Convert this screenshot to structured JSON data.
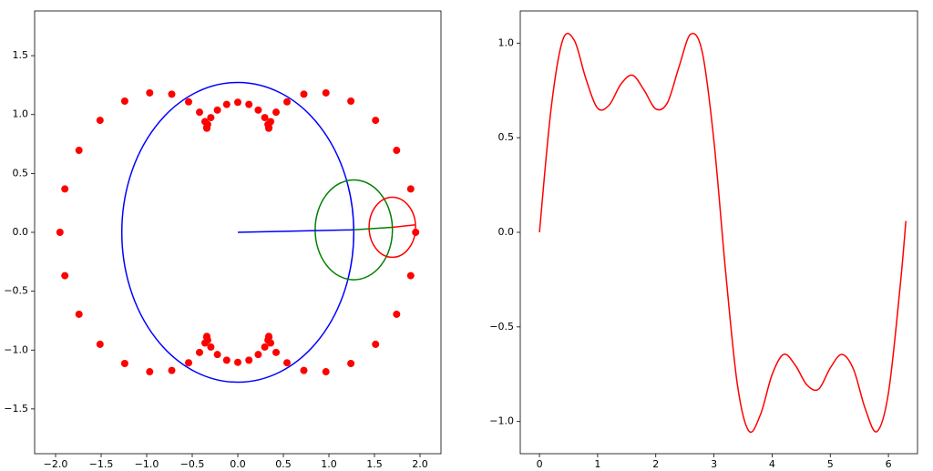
{
  "chart_data": [
    {
      "type": "scatter",
      "color": "#ff0000",
      "x": [
        1.952,
        1.898,
        1.743,
        1.512,
        1.241,
        0.967,
        0.725,
        0.54,
        0.42,
        0.36,
        0.341,
        0.34,
        0.331,
        0.296,
        0.224,
        0.122,
        0,
        -0.122,
        -0.224,
        -0.296,
        -0.331,
        -0.34,
        -0.341,
        -0.36,
        -0.42,
        -0.54,
        -0.725,
        -0.967,
        -1.241,
        -1.512,
        -1.743,
        -1.898,
        -1.952,
        -1.898,
        -1.743,
        -1.512,
        -1.241,
        -0.967,
        -0.725,
        -0.54,
        -0.42,
        -0.36,
        -0.341,
        -0.34,
        -0.331,
        -0.296,
        -0.224,
        -0.122,
        0,
        0.122,
        0.224,
        0.296,
        0.331,
        0.34,
        0.341,
        0.36,
        0.42,
        0.54,
        0.725,
        0.967,
        1.241,
        1.512,
        1.743,
        1.898
      ],
      "y": [
        0,
        0.368,
        0.696,
        0.951,
        1.114,
        1.184,
        1.173,
        1.108,
        1.02,
        0.94,
        0.891,
        0.884,
        0.916,
        0.974,
        1.038,
        1.086,
        1.104,
        1.086,
        1.038,
        0.974,
        0.916,
        0.884,
        0.891,
        0.94,
        1.02,
        1.108,
        1.173,
        1.184,
        1.114,
        0.951,
        0.696,
        0.368,
        0,
        -0.368,
        -0.696,
        -0.951,
        -1.114,
        -1.184,
        -1.173,
        -1.108,
        -1.02,
        -0.94,
        -0.891,
        -0.884,
        -0.916,
        -0.974,
        -1.038,
        -1.086,
        -1.104,
        -1.086,
        -1.038,
        -0.974,
        -0.916,
        -0.884,
        -0.891,
        -0.94,
        -1.02,
        -1.108,
        -1.173,
        -1.184,
        -1.114,
        -0.951,
        -0.696,
        -0.368
      ],
      "circles": [
        {
          "center": [
            0,
            0
          ],
          "radius": 1.273,
          "color": "#0000ff"
        },
        {
          "center": [
            1.273,
            0.021
          ],
          "radius": 0.424,
          "color": "#008000"
        },
        {
          "center": [
            1.696,
            0.043
          ],
          "radius": 0.255,
          "color": "#ff0000"
        }
      ],
      "lines": [
        {
          "from": [
            0,
            0
          ],
          "to": [
            1.273,
            0.021
          ],
          "color": "#0000ff"
        },
        {
          "from": [
            1.273,
            0.021
          ],
          "to": [
            1.696,
            0.043
          ],
          "color": "#008000"
        },
        {
          "from": [
            1.696,
            0.043
          ],
          "to": [
            1.951,
            0.064
          ],
          "color": "#ff0000"
        }
      ],
      "xlim": [
        -2.23,
        2.23
      ],
      "ylim": [
        -1.88,
        1.88
      ],
      "xticks": [
        {
          "value": -2.0,
          "label": "−2.0"
        },
        {
          "value": -1.5,
          "label": "−1.5"
        },
        {
          "value": -1.0,
          "label": "−1.0"
        },
        {
          "value": -0.5,
          "label": "−0.5"
        },
        {
          "value": 0,
          "label": "0.0"
        },
        {
          "value": 0.5,
          "label": "0.5"
        },
        {
          "value": 1.0,
          "label": "1.0"
        },
        {
          "value": 1.5,
          "label": "1.5"
        },
        {
          "value": 2.0,
          "label": "2.0"
        }
      ],
      "yticks": [
        {
          "value": -1.5,
          "label": "−1.5"
        },
        {
          "value": -1.0,
          "label": "−1.0"
        },
        {
          "value": -0.5,
          "label": "−0.5"
        },
        {
          "value": 0,
          "label": "0.0"
        },
        {
          "value": 0.5,
          "label": "0.5"
        },
        {
          "value": 1.0,
          "label": "1.0"
        },
        {
          "value": 1.5,
          "label": "1.5"
        }
      ]
    },
    {
      "type": "line",
      "color": "#ff0000",
      "x": [
        0,
        0.2,
        0.4,
        0.6,
        0.8,
        1.0,
        1.2,
        1.4,
        1.6,
        1.8,
        2.0,
        2.2,
        2.4,
        2.6,
        2.8,
        3.0,
        3.2,
        3.4,
        3.6,
        3.8,
        4.0,
        4.2,
        4.4,
        4.6,
        4.8,
        5.0,
        5.2,
        5.4,
        5.6,
        5.8,
        6.0,
        6.2,
        6.3
      ],
      "values": [
        0,
        0.653,
        1.016,
        1.014,
        0.81,
        0.656,
        0.673,
        0.783,
        0.83,
        0.751,
        0.652,
        0.685,
        0.875,
        1.047,
        0.951,
        0.482,
        -0.205,
        -0.798,
        -1.05,
        -0.963,
        -0.752,
        -0.645,
        -0.703,
        -0.807,
        -0.829,
        -0.717,
        -0.645,
        -0.724,
        -0.931,
        -1.053,
        -0.849,
        -0.291,
        0.06
      ],
      "xlim": [
        -0.33,
        6.5
      ],
      "ylim": [
        -1.17,
        1.17
      ],
      "xticks": [
        0,
        1,
        2,
        3,
        4,
        5,
        6
      ],
      "yticks": [
        {
          "value": -1.0,
          "label": "−1.0"
        },
        {
          "value": -0.5,
          "label": "−0.5"
        },
        {
          "value": 0,
          "label": "0.0"
        },
        {
          "value": 0.5,
          "label": "0.5"
        },
        {
          "value": 1.0,
          "label": "1.0"
        }
      ]
    }
  ]
}
